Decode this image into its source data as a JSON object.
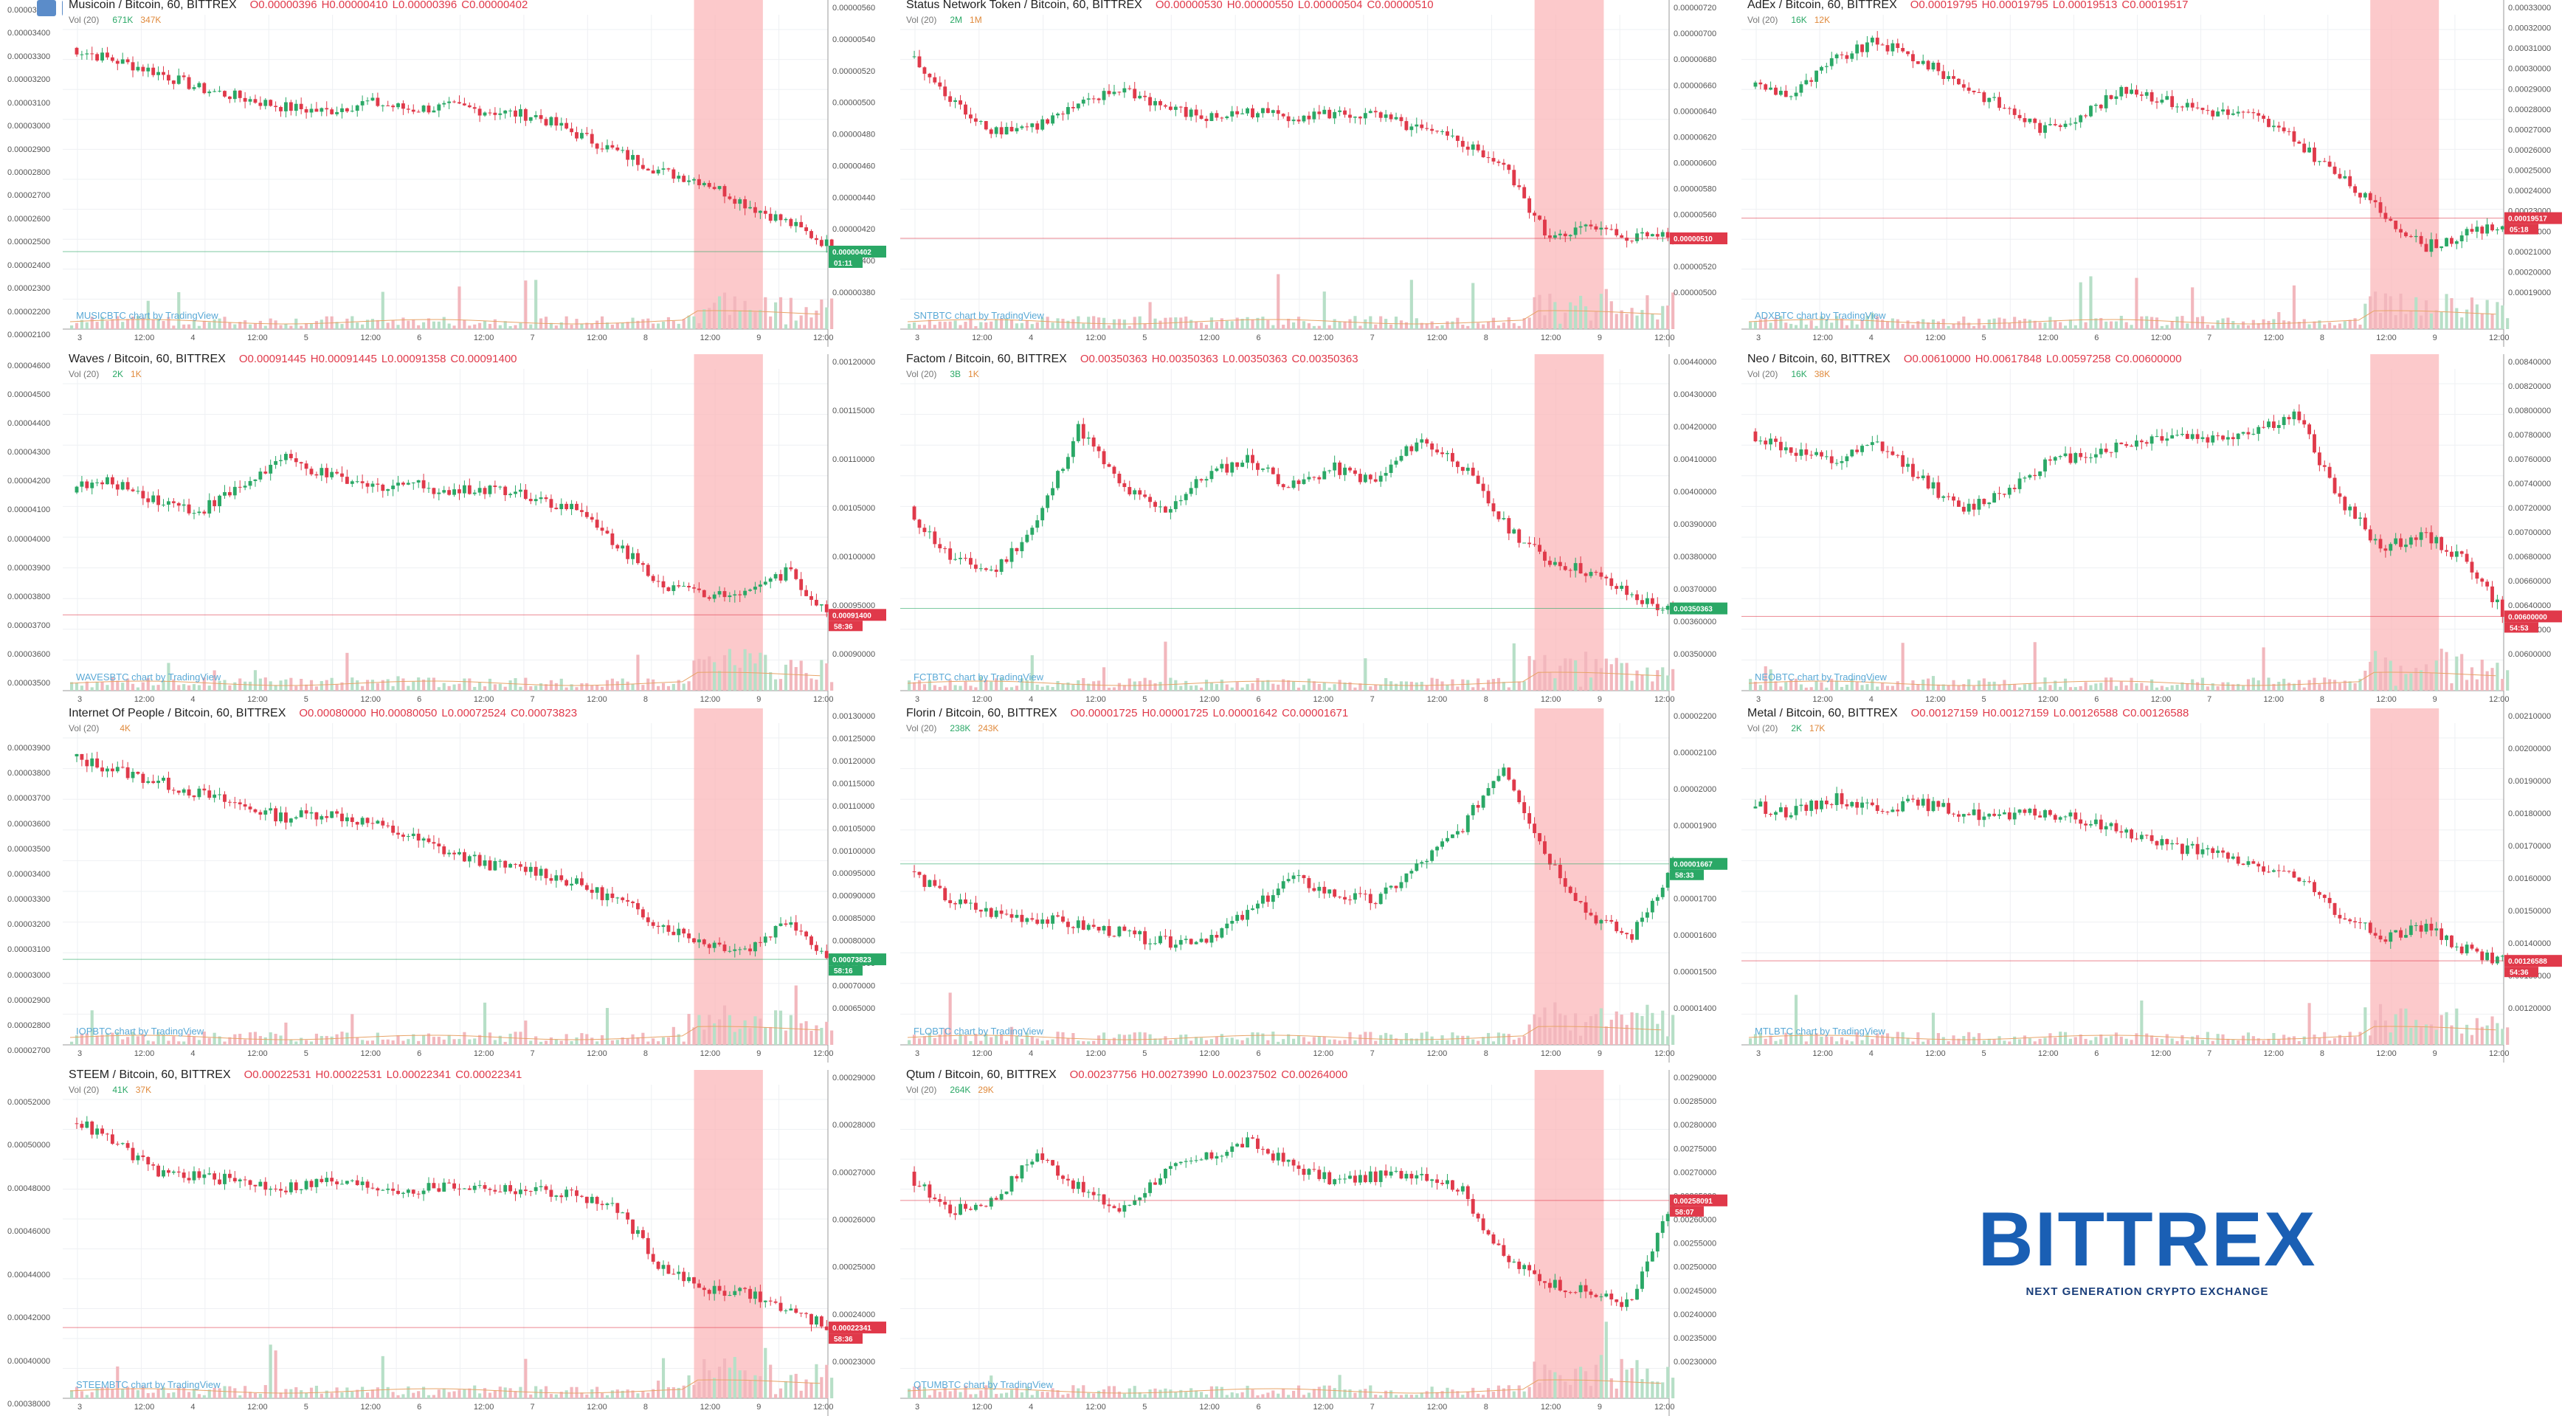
{
  "logo": {
    "word": "BITTREX",
    "tagline": "NEXT GENERATION CRYPTO EXCHANGE",
    "color": "#1a5fb4"
  },
  "colors": {
    "up": "#2aa866",
    "down": "#e0394a",
    "highlight": "#fbb7b9",
    "volume_up": "#b7dfc7",
    "volume_down": "#f2b7bd",
    "ma": "#e8a468"
  },
  "panels": [
    {
      "pair": "Musicoin / Bitcoin, 60, BITTREX",
      "open": "O0.00000396",
      "high": "H0.00000410",
      "low": "L0.00000396",
      "close": "C0.00000402",
      "vol_a": "671K",
      "vol_b": "347K",
      "credit": "MUSICBTC chart by TradingView",
      "price_tag": "0.00000402",
      "time_tag": "01:11",
      "tag_up": true,
      "yticks": [
        "0.00000560",
        "0.00000540",
        "0.00000520",
        "0.00000500",
        "0.00000480",
        "0.00000460",
        "0.00000440",
        "0.00000420",
        "0.00000400",
        "0.00000380"
      ],
      "xticks": [
        "3",
        "12:00",
        "4",
        "12:00",
        "5",
        "12:00",
        "6",
        "12:00",
        "7",
        "12:00",
        "8",
        "12:00",
        "9",
        "12:00"
      ]
    },
    {
      "pair": "Status Network Token / Bitcoin, 60, BITTREX",
      "open": "O0.00000530",
      "high": "H0.00000550",
      "low": "L0.00000504",
      "close": "C0.00000510",
      "vol_a": "2M",
      "vol_b": "1M",
      "credit": "SNTBTC chart by TradingView",
      "price_tag": "0.00000510",
      "time_tag": "",
      "tag_up": false,
      "yticks": [
        "0.00000720",
        "0.00000700",
        "0.00000680",
        "0.00000660",
        "0.00000640",
        "0.00000620",
        "0.00000600",
        "0.00000580",
        "0.00000560",
        "0.00000540",
        "0.00000520",
        "0.00000500"
      ],
      "xticks": [
        "3",
        "12:00",
        "4",
        "12:00",
        "5",
        "12:00",
        "6",
        "12:00",
        "7",
        "12:00",
        "8",
        "12:00",
        "9",
        "12:00"
      ]
    },
    {
      "pair": "AdEx / Bitcoin, 60, BITTREX",
      "open": "O0.00019795",
      "high": "H0.00019795",
      "low": "L0.00019513",
      "close": "C0.00019517",
      "vol_a": "16K",
      "vol_b": "12K",
      "credit": "ADXBTC chart by TradingView",
      "price_tag": "0.00019517",
      "time_tag": "05:18",
      "tag_up": false,
      "yticks": [
        "0.00033000",
        "0.00032000",
        "0.00031000",
        "0.00030000",
        "0.00029000",
        "0.00028000",
        "0.00027000",
        "0.00026000",
        "0.00025000",
        "0.00024000",
        "0.00023000",
        "0.00022000",
        "0.00021000",
        "0.00020000",
        "0.00019000"
      ],
      "xticks": [
        "3",
        "12:00",
        "4",
        "12:00",
        "5",
        "12:00",
        "6",
        "12:00",
        "7",
        "12:00",
        "8",
        "12:00",
        "9",
        "12:00"
      ]
    },
    {
      "pair": "Waves / Bitcoin, 60, BITTREX",
      "open": "O0.00091445",
      "high": "H0.00091445",
      "low": "L0.00091358",
      "close": "C0.00091400",
      "vol_a": "2K",
      "vol_b": "1K",
      "credit": "WAVESBTC chart by TradingView",
      "price_tag": "0.00091400",
      "time_tag": "58:36",
      "tag_up": false,
      "yticks": [
        "0.00120000",
        "0.00115000",
        "0.00110000",
        "0.00105000",
        "0.00100000",
        "0.00095000",
        "0.00090000"
      ],
      "xticks": [
        "3",
        "12:00",
        "4",
        "12:00",
        "5",
        "12:00",
        "6",
        "12:00",
        "7",
        "12:00",
        "8",
        "12:00",
        "9",
        "12:00"
      ]
    },
    {
      "pair": "Factom / Bitcoin, 60, BITTREX",
      "open": "O0.00350363",
      "high": "H0.00350363",
      "low": "L0.00350363",
      "close": "C0.00350363",
      "vol_a": "3B",
      "vol_b": "1K",
      "credit": "FCTBTC chart by TradingView",
      "price_tag": "0.00350363",
      "time_tag": "",
      "tag_up": true,
      "yticks": [
        "0.00440000",
        "0.00430000",
        "0.00420000",
        "0.00410000",
        "0.00400000",
        "0.00390000",
        "0.00380000",
        "0.00370000",
        "0.00360000",
        "0.00350000"
      ],
      "xticks": [
        "3",
        "12:00",
        "4",
        "12:00",
        "5",
        "12:00",
        "6",
        "12:00",
        "7",
        "12:00",
        "8",
        "12:00",
        "9",
        "12:00"
      ]
    },
    {
      "pair": "Neo / Bitcoin, 60, BITTREX",
      "open": "O0.00610000",
      "high": "H0.00617848",
      "low": "L0.00597258",
      "close": "C0.00600000",
      "vol_a": "16K",
      "vol_b": "38K",
      "credit": "NEOBTC chart by TradingView",
      "price_tag": "0.00600000",
      "time_tag": "54:53",
      "tag_up": false,
      "yticks": [
        "0.00840000",
        "0.00820000",
        "0.00800000",
        "0.00780000",
        "0.00760000",
        "0.00740000",
        "0.00720000",
        "0.00700000",
        "0.00680000",
        "0.00660000",
        "0.00640000",
        "0.00620000",
        "0.00600000"
      ],
      "xticks": [
        "3",
        "12:00",
        "4",
        "12:00",
        "5",
        "12:00",
        "6",
        "12:00",
        "7",
        "12:00",
        "8",
        "12:00",
        "9",
        "12:00"
      ]
    },
    {
      "pair": "Internet Of People / Bitcoin, 60, BITTREX",
      "open": "O0.00080000",
      "high": "H0.00080050",
      "low": "L0.00072524",
      "close": "C0.00073823",
      "vol_a": "",
      "vol_b": "4K",
      "credit": "IOPBTC chart by TradingView",
      "price_tag": "0.00073823",
      "time_tag": "58:16",
      "tag_up": true,
      "yticks": [
        "0.00130000",
        "0.00125000",
        "0.00120000",
        "0.00115000",
        "0.00110000",
        "0.00105000",
        "0.00100000",
        "0.00095000",
        "0.00090000",
        "0.00085000",
        "0.00080000",
        "0.00075000",
        "0.00070000",
        "0.00065000"
      ],
      "xticks": [
        "3",
        "12:00",
        "4",
        "12:00",
        "5",
        "12:00",
        "6",
        "12:00",
        "7",
        "12:00",
        "8",
        "12:00",
        "9",
        "12:00"
      ]
    },
    {
      "pair": "Florin / Bitcoin, 60, BITTREX",
      "open": "O0.00001725",
      "high": "H0.00001725",
      "low": "L0.00001642",
      "close": "C0.00001671",
      "vol_a": "238K",
      "vol_b": "243K",
      "credit": "FLOBTC chart by TradingView",
      "price_tag": "0.00001667",
      "time_tag": "58:33",
      "tag_up": true,
      "yticks": [
        "0.00002200",
        "0.00002100",
        "0.00002000",
        "0.00001900",
        "0.00001800",
        "0.00001700",
        "0.00001600",
        "0.00001500",
        "0.00001400"
      ],
      "xticks": [
        "3",
        "12:00",
        "4",
        "12:00",
        "5",
        "12:00",
        "6",
        "12:00",
        "7",
        "12:00",
        "8",
        "12:00",
        "9",
        "12:00"
      ]
    },
    {
      "pair": "Metal / Bitcoin, 60, BITTREX",
      "open": "O0.00127159",
      "high": "H0.00127159",
      "low": "L0.00126588",
      "close": "C0.00126588",
      "vol_a": "2K",
      "vol_b": "17K",
      "credit": "MTLBTC chart by TradingView",
      "price_tag": "0.00126588",
      "time_tag": "54:36",
      "tag_up": false,
      "yticks": [
        "0.00210000",
        "0.00200000",
        "0.00190000",
        "0.00180000",
        "0.00170000",
        "0.00160000",
        "0.00150000",
        "0.00140000",
        "0.00130000",
        "0.00120000"
      ],
      "xticks": [
        "3",
        "12:00",
        "4",
        "12:00",
        "5",
        "12:00",
        "6",
        "12:00",
        "7",
        "12:00",
        "8",
        "12:00",
        "9",
        "12:00"
      ]
    },
    {
      "pair": "STEEM / Bitcoin, 60, BITTREX",
      "open": "O0.00022531",
      "high": "H0.00022531",
      "low": "L0.00022341",
      "close": "C0.00022341",
      "vol_a": "41K",
      "vol_b": "37K",
      "credit": "STEEMBTC chart by TradingView",
      "price_tag": "0.00022341",
      "time_tag": "58:36",
      "tag_up": false,
      "yticks": [
        "0.00029000",
        "0.00028000",
        "0.00027000",
        "0.00026000",
        "0.00025000",
        "0.00024000",
        "0.00023000"
      ],
      "xticks": [
        "3",
        "12:00",
        "4",
        "12:00",
        "5",
        "12:00",
        "6",
        "12:00",
        "7",
        "12:00",
        "8",
        "12:00",
        "9",
        "12:00"
      ]
    },
    {
      "pair": "Qtum / Bitcoin, 60, BITTREX",
      "open": "O0.00237756",
      "high": "H0.00273990",
      "low": "L0.00237502",
      "close": "C0.00264000",
      "vol_a": "264K",
      "vol_b": "29K",
      "credit": "QTUMBTC chart by TradingView",
      "price_tag": "0.00258091",
      "time_tag": "58:07",
      "tag_up": false,
      "yticks": [
        "0.00290000",
        "0.00285000",
        "0.00280000",
        "0.00275000",
        "0.00270000",
        "0.00265000",
        "0.00260000",
        "0.00255000",
        "0.00250000",
        "0.00245000",
        "0.00240000",
        "0.00235000",
        "0.00230000"
      ],
      "xticks": [
        "3",
        "12:00",
        "4",
        "12:00",
        "5",
        "12:00",
        "6",
        "12:00",
        "7",
        "12:00",
        "8",
        "12:00",
        "9",
        "12:00"
      ]
    }
  ],
  "left_strip_labels": [
    [
      "0.00003500",
      "0.00003400",
      "0.00003300",
      "0.00003200",
      "0.00003100",
      "0.00003000",
      "0.00002900",
      "0.00002800",
      "0.00002700",
      "0.00002600",
      "0.00002500",
      "0.00002400",
      "0.00002300",
      "0.00002200",
      "0.00002100"
    ],
    [
      "0.00004600",
      "0.00004500",
      "0.00004400",
      "0.00004300",
      "0.00004200",
      "0.00004100",
      "0.00004000",
      "0.00003900",
      "0.00003800",
      "0.00003700",
      "0.00003600",
      "0.00003500"
    ],
    [
      "0.00003900",
      "0.00003800",
      "0.00003700",
      "0.00003600",
      "0.00003500",
      "0.00003400",
      "0.00003300",
      "0.00003200",
      "0.00003100",
      "0.00003000",
      "0.00002900",
      "0.00002800",
      "0.00002700"
    ],
    [
      "0.00052000",
      "0.00050000",
      "0.00048000",
      "0.00046000",
      "0.00044000",
      "0.00042000",
      "0.00040000",
      "0.00038000"
    ]
  ],
  "chart_data": [
    {
      "type": "candlestick",
      "title": "Musicoin / Bitcoin, 60, BITTREX",
      "shape": [
        0.95,
        0.9,
        0.85,
        0.78,
        0.74,
        0.7,
        0.68,
        0.72,
        0.69,
        0.7,
        0.68,
        0.66,
        0.58,
        0.5,
        0.42,
        0.38,
        0.28,
        0.2,
        0.1
      ]
    },
    {
      "type": "candlestick",
      "title": "Status Network Token / Bitcoin, 60, BITTREX",
      "shape": [
        0.92,
        0.72,
        0.6,
        0.62,
        0.7,
        0.78,
        0.7,
        0.65,
        0.68,
        0.66,
        0.67,
        0.66,
        0.6,
        0.55,
        0.45,
        0.15,
        0.18,
        0.14,
        0.16
      ]
    },
    {
      "type": "candlestick",
      "title": "AdEx / Bitcoin, 60, BITTREX",
      "shape": [
        0.8,
        0.75,
        0.9,
        0.98,
        0.9,
        0.8,
        0.7,
        0.6,
        0.68,
        0.78,
        0.72,
        0.68,
        0.66,
        0.55,
        0.4,
        0.25,
        0.1,
        0.15,
        0.2
      ]
    },
    {
      "type": "candlestick",
      "title": "Waves / Bitcoin, 60, BITTREX",
      "shape": [
        0.6,
        0.62,
        0.55,
        0.5,
        0.6,
        0.72,
        0.65,
        0.6,
        0.62,
        0.58,
        0.6,
        0.56,
        0.5,
        0.35,
        0.2,
        0.15,
        0.18,
        0.25,
        0.05
      ]
    },
    {
      "type": "candlestick",
      "title": "Factom / Bitcoin, 60, BITTREX",
      "shape": [
        0.5,
        0.3,
        0.25,
        0.45,
        0.85,
        0.6,
        0.5,
        0.65,
        0.72,
        0.6,
        0.68,
        0.62,
        0.8,
        0.7,
        0.45,
        0.3,
        0.25,
        0.15,
        0.08
      ]
    },
    {
      "type": "candlestick",
      "title": "Neo / Bitcoin, 60, BITTREX",
      "shape": [
        0.82,
        0.75,
        0.7,
        0.78,
        0.65,
        0.5,
        0.58,
        0.7,
        0.74,
        0.78,
        0.82,
        0.8,
        0.84,
        0.9,
        0.55,
        0.35,
        0.4,
        0.3,
        0.05
      ]
    },
    {
      "type": "candlestick",
      "title": "Internet Of People / Bitcoin, 60, BITTREX",
      "shape": [
        0.95,
        0.9,
        0.85,
        0.8,
        0.75,
        0.7,
        0.72,
        0.68,
        0.62,
        0.55,
        0.5,
        0.48,
        0.42,
        0.35,
        0.25,
        0.18,
        0.15,
        0.28,
        0.1
      ]
    },
    {
      "type": "candlestick",
      "title": "Florin / Bitcoin, 60, BITTREX",
      "shape": [
        0.48,
        0.35,
        0.3,
        0.28,
        0.25,
        0.22,
        0.18,
        0.2,
        0.3,
        0.45,
        0.38,
        0.35,
        0.5,
        0.65,
        0.92,
        0.55,
        0.3,
        0.2,
        0.5
      ]
    },
    {
      "type": "candlestick",
      "title": "Metal / Bitcoin, 60, BITTREX",
      "shape": [
        0.75,
        0.72,
        0.78,
        0.74,
        0.76,
        0.72,
        0.7,
        0.72,
        0.68,
        0.64,
        0.58,
        0.55,
        0.5,
        0.45,
        0.3,
        0.2,
        0.25,
        0.15,
        0.1
      ]
    },
    {
      "type": "candlestick",
      "title": "STEEM / Bitcoin, 60, BITTREX",
      "shape": [
        0.95,
        0.85,
        0.72,
        0.7,
        0.68,
        0.65,
        0.68,
        0.66,
        0.64,
        0.66,
        0.65,
        0.64,
        0.62,
        0.55,
        0.3,
        0.22,
        0.2,
        0.12,
        0.05
      ]
    },
    {
      "type": "candlestick",
      "title": "Qtum / Bitcoin, 60, BITTREX",
      "shape": [
        0.7,
        0.55,
        0.6,
        0.8,
        0.65,
        0.55,
        0.72,
        0.78,
        0.85,
        0.75,
        0.68,
        0.7,
        0.72,
        0.65,
        0.35,
        0.25,
        0.2,
        0.15,
        0.6
      ]
    }
  ]
}
